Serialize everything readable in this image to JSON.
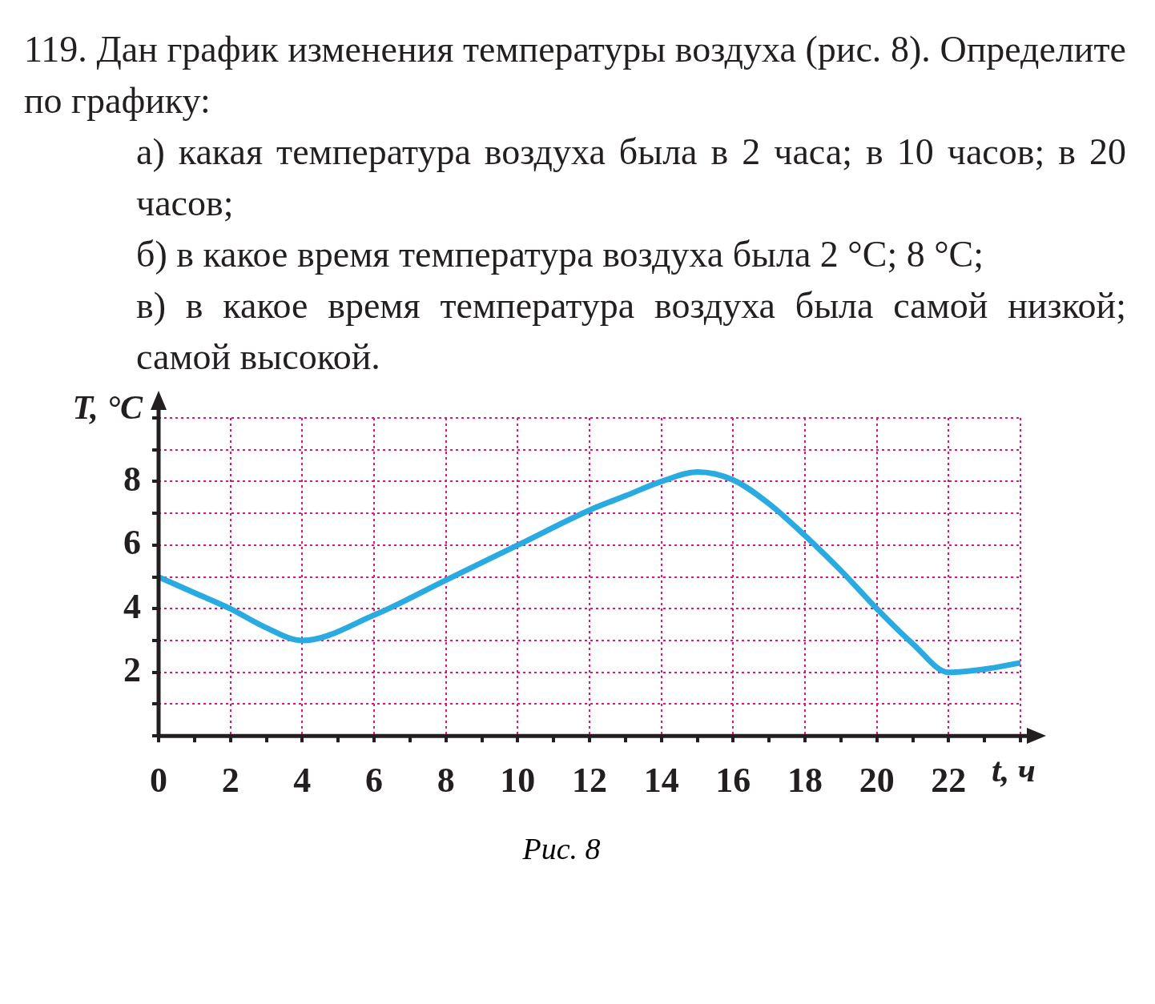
{
  "chart_data": {
    "type": "line",
    "title": "119. Дан график изменения температуры воздуха (рис. 8). Определите по графику:",
    "annotations": [
      "а) какая температура воздуха была в 2 часа; в 10 часов; в 20 часов;",
      "б) в какое время температура воздуха была 2 °C; 8 °C;",
      "в) в какое время температура воздуха была самой низкой; самой высокой.",
      "Рис. 8"
    ],
    "xlabel": "t, ч",
    "ylabel": "T, °C",
    "x": [
      0,
      1,
      2,
      3,
      4,
      6,
      8,
      10,
      12,
      13,
      14,
      15,
      16,
      17,
      18,
      19,
      20,
      21,
      22,
      23,
      24
    ],
    "series": [
      {
        "color": "#29abe2",
        "values": [
          5,
          4.5,
          4,
          3.4,
          3,
          3.8,
          4.9,
          6,
          7.1,
          7.55,
          8,
          8.3,
          8.05,
          7.3,
          6.3,
          5.2,
          4,
          2.9,
          2,
          2.1,
          2.3
        ]
      }
    ],
    "xlim": [
      0,
      24
    ],
    "ylim": [
      0,
      10
    ],
    "xticks": [
      0,
      {
        "value": 1,
        "label": null
      },
      2,
      {
        "value": 3,
        "label": null
      },
      4,
      {
        "value": 5,
        "label": null
      },
      6,
      {
        "value": 7,
        "label": null
      },
      8,
      {
        "value": 9,
        "label": null
      },
      10,
      {
        "value": 11,
        "label": null
      },
      12,
      {
        "value": 13,
        "label": null
      },
      14,
      {
        "value": 15,
        "label": null
      },
      16,
      {
        "value": 17,
        "label": null
      },
      18,
      {
        "value": 19,
        "label": null
      },
      20,
      {
        "value": 21,
        "label": null
      },
      22,
      {
        "value": 23,
        "label": null
      },
      {
        "value": 24,
        "label": null
      }
    ],
    "yticks": [
      {
        "value": 0,
        "label": null
      },
      {
        "value": 1,
        "label": null
      },
      2,
      {
        "value": 3,
        "label": null
      },
      4,
      {
        "value": 5,
        "label": null
      },
      6,
      {
        "value": 7,
        "label": null
      },
      8,
      {
        "value": 9,
        "label": null
      },
      {
        "value": 10,
        "label": null
      }
    ],
    "grid": true,
    "legend": false,
    "marker": "none",
    "line_style": "solid"
  }
}
